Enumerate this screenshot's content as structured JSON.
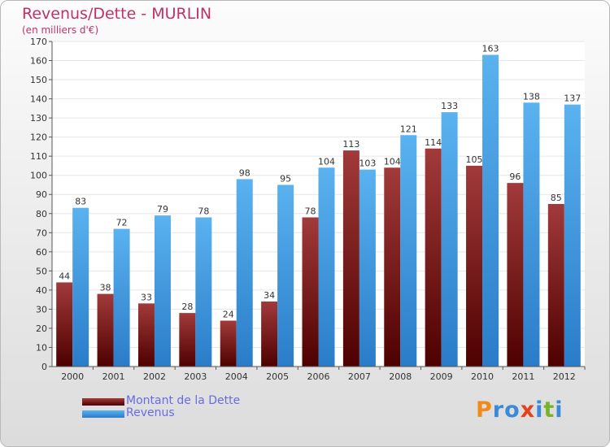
{
  "header": {
    "title": "Revenus/Dette - MURLIN",
    "subtitle": "(en milliers d'€)"
  },
  "logo": {
    "text": "Proxiti",
    "letters": [
      {
        "char": "P",
        "color": "#f08a1c"
      },
      {
        "char": "r",
        "color": "#3a8ad8"
      },
      {
        "char": "o",
        "color": "#3a8ad8"
      },
      {
        "char": "x",
        "color": "#e8401c"
      },
      {
        "char": "i",
        "color": "#3a8ad8"
      },
      {
        "char": "t",
        "color": "#78b428"
      },
      {
        "char": "i",
        "color": "#3a8ad8"
      }
    ]
  },
  "chart_data": {
    "type": "bar",
    "categories": [
      "2000",
      "2001",
      "2002",
      "2003",
      "2004",
      "2005",
      "2006",
      "2007",
      "2008",
      "2009",
      "2010",
      "2011",
      "2012"
    ],
    "series": [
      {
        "name": "Montant de la Dette",
        "color": "#7a1010",
        "values": [
          44,
          38,
          33,
          28,
          24,
          34,
          78,
          113,
          104,
          114,
          105,
          96,
          85
        ]
      },
      {
        "name": "Revenus",
        "color": "#3a98e0",
        "values": [
          83,
          72,
          79,
          78,
          98,
          95,
          104,
          103,
          121,
          133,
          163,
          138,
          137
        ]
      }
    ],
    "ylim": [
      0,
      170
    ],
    "yticks": [
      0,
      10,
      20,
      30,
      40,
      50,
      60,
      70,
      80,
      90,
      100,
      110,
      120,
      130,
      140,
      150,
      160,
      170
    ],
    "xlabel": "",
    "ylabel": "",
    "grid": true,
    "legend": "bottom-left"
  }
}
